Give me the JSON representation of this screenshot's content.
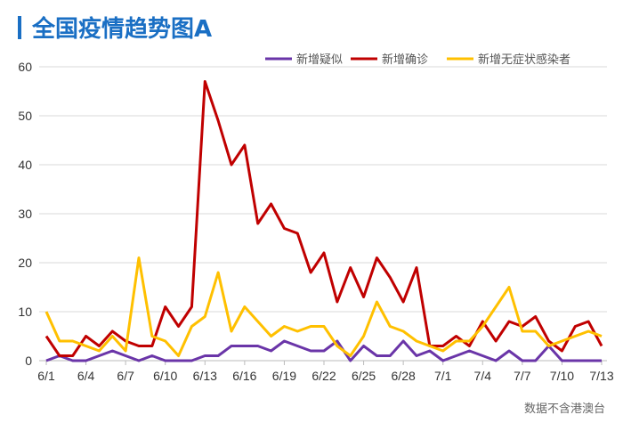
{
  "chart_data": {
    "type": "line",
    "title": "全国疫情趋势图A",
    "note": "数据不含港澳台",
    "x": [
      "6/1",
      "6/2",
      "6/3",
      "6/4",
      "6/5",
      "6/6",
      "6/7",
      "6/8",
      "6/9",
      "6/10",
      "6/11",
      "6/12",
      "6/13",
      "6/14",
      "6/15",
      "6/16",
      "6/17",
      "6/18",
      "6/19",
      "6/20",
      "6/21",
      "6/22",
      "6/23",
      "6/24",
      "6/25",
      "6/26",
      "6/27",
      "6/28",
      "6/29",
      "6/30",
      "7/1",
      "7/2",
      "7/3",
      "7/4",
      "7/5",
      "7/6",
      "7/7",
      "7/8",
      "7/9",
      "7/10",
      "7/11",
      "7/12",
      "7/13"
    ],
    "xticks": [
      "6/1",
      "6/4",
      "6/7",
      "6/10",
      "6/13",
      "6/16",
      "6/19",
      "6/22",
      "6/25",
      "6/28",
      "7/1",
      "7/4",
      "7/7",
      "7/10",
      "7/13"
    ],
    "yticks": [
      0,
      10,
      20,
      30,
      40,
      50,
      60
    ],
    "ylim": [
      0,
      60
    ],
    "grid": true,
    "legend": "top-right",
    "series": [
      {
        "name": "新增疑似",
        "color": "#6a35a8",
        "values": [
          0,
          1,
          0,
          0,
          1,
          2,
          1,
          0,
          1,
          0,
          0,
          0,
          1,
          1,
          3,
          3,
          3,
          2,
          4,
          3,
          2,
          2,
          4,
          0,
          3,
          1,
          1,
          4,
          1,
          2,
          0,
          1,
          2,
          1,
          0,
          2,
          0,
          0,
          3,
          0,
          0,
          0,
          0
        ]
      },
      {
        "name": "新增确诊",
        "color": "#c00000",
        "values": [
          5,
          1,
          1,
          5,
          3,
          6,
          4,
          3,
          3,
          11,
          7,
          11,
          57,
          49,
          40,
          44,
          28,
          32,
          27,
          26,
          18,
          22,
          12,
          19,
          13,
          21,
          17,
          12,
          19,
          3,
          3,
          5,
          3,
          8,
          4,
          8,
          7,
          9,
          4,
          2,
          7,
          8,
          3
        ]
      },
      {
        "name": "新增无症状感染者",
        "color": "#ffc000",
        "values": [
          10,
          4,
          4,
          3,
          2,
          5,
          2,
          21,
          5,
          4,
          1,
          7,
          9,
          18,
          6,
          11,
          8,
          5,
          7,
          6,
          7,
          7,
          3,
          1,
          5,
          12,
          7,
          6,
          4,
          3,
          2,
          4,
          4,
          7,
          11,
          15,
          6,
          6,
          3,
          4,
          5,
          6,
          5
        ]
      }
    ]
  }
}
